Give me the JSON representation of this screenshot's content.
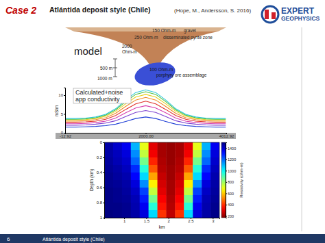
{
  "header": {
    "case": "Case 2",
    "title": "Atlántida deposit style (Chile)",
    "citation": "(Hope, M., Andersson, S. 2016)"
  },
  "logo": {
    "line1": "EXPERT",
    "line2": "GEOPHYSICS"
  },
  "model": {
    "title": "model",
    "layers": [
      {
        "resistivity": "150 Ohm-m",
        "label": "gravel"
      },
      {
        "resistivity": "250 Ohm-m",
        "label": "disseminated pyrite zone"
      },
      {
        "resistivity": "100 Ohm-m",
        "label": "porphyry ore assemblage"
      }
    ],
    "host": [
      "2000",
      "Ohm-m"
    ],
    "scale": [
      "500 m",
      "1000 m"
    ]
  },
  "chart_data": [
    {
      "type": "line",
      "annotation": [
        "Calculated+noise",
        "app conductivity"
      ],
      "ylabel": "mS/m",
      "x": [
        0,
        250,
        500,
        750,
        1000,
        1250,
        1500,
        1750,
        2000,
        2250,
        2500,
        2750,
        3000,
        3250,
        3500,
        3750,
        4000
      ],
      "xlim": [
        -12.92,
        4012.92
      ],
      "xticks": [
        -12.92,
        {
          "value": 2000,
          "label": "2000.00"
        },
        4012.92
      ],
      "ylim": [
        0,
        12
      ],
      "yticks": [
        0,
        5,
        10
      ],
      "series": [
        {
          "color": "#1f3fd6",
          "values": [
            1.5,
            1.5,
            1.6,
            1.7,
            1.9,
            2.3,
            3.0,
            3.8,
            4.2,
            3.8,
            3.0,
            2.3,
            1.9,
            1.7,
            1.6,
            1.5,
            1.5
          ]
        },
        {
          "color": "#7b3fd0",
          "values": [
            2.0,
            2.0,
            2.1,
            2.3,
            2.6,
            3.2,
            4.3,
            5.4,
            5.9,
            5.4,
            4.3,
            3.2,
            2.6,
            2.3,
            2.1,
            2.0,
            2.0
          ]
        },
        {
          "color": "#d63fb0",
          "values": [
            2.4,
            2.4,
            2.5,
            2.7,
            3.1,
            3.9,
            5.3,
            6.6,
            7.2,
            6.6,
            5.3,
            3.9,
            3.1,
            2.7,
            2.5,
            2.4,
            2.4
          ]
        },
        {
          "color": "#e0302a",
          "values": [
            2.8,
            2.8,
            2.9,
            3.1,
            3.6,
            4.6,
            6.2,
            7.7,
            8.4,
            7.7,
            6.2,
            4.6,
            3.6,
            3.1,
            2.9,
            2.8,
            2.8
          ]
        },
        {
          "color": "#f08a24",
          "values": [
            3.1,
            3.1,
            3.2,
            3.5,
            4.0,
            5.2,
            7.0,
            8.7,
            9.4,
            8.7,
            7.0,
            5.2,
            4.0,
            3.5,
            3.2,
            3.1,
            3.1
          ]
        },
        {
          "color": "#e8d020",
          "values": [
            3.4,
            3.4,
            3.5,
            3.8,
            4.4,
            5.7,
            7.7,
            9.5,
            10.2,
            9.5,
            7.7,
            5.7,
            4.4,
            3.8,
            3.5,
            3.4,
            3.4
          ]
        },
        {
          "color": "#4cc040",
          "values": [
            3.6,
            3.6,
            3.7,
            4.0,
            4.7,
            6.1,
            8.3,
            10.2,
            10.9,
            10.2,
            8.3,
            6.1,
            4.7,
            4.0,
            3.7,
            3.6,
            3.6
          ]
        },
        {
          "color": "#30c8d8",
          "values": [
            3.8,
            3.8,
            3.9,
            4.2,
            4.9,
            6.4,
            8.7,
            10.7,
            11.4,
            10.7,
            8.7,
            6.4,
            4.9,
            4.2,
            3.9,
            3.8,
            3.8
          ]
        }
      ]
    },
    {
      "type": "heatmap",
      "xlabel": "km",
      "ylabel": "Depth (km)",
      "xlim": [
        0.55,
        3.15
      ],
      "ylim": [
        0,
        1
      ],
      "xticks": [
        1,
        1.5,
        2,
        2.5,
        3
      ],
      "yticks": [
        0,
        0.2,
        0.4,
        0.6,
        0.8,
        1
      ],
      "x": [
        0.65,
        0.85,
        1.05,
        1.25,
        1.45,
        1.65,
        1.85,
        2.05,
        2.25,
        2.45,
        2.65,
        2.85,
        3.05
      ],
      "y": [
        0.05,
        0.15,
        0.25,
        0.35,
        0.45,
        0.55,
        0.65,
        0.75,
        0.85,
        0.95
      ],
      "z": [
        [
          1450,
          1400,
          1350,
          1100,
          700,
          300,
          220,
          200,
          220,
          300,
          700,
          1100,
          1350
        ],
        [
          1450,
          1420,
          1380,
          1150,
          750,
          320,
          220,
          200,
          220,
          320,
          750,
          1150,
          1380
        ],
        [
          1460,
          1430,
          1400,
          1200,
          850,
          380,
          230,
          200,
          230,
          380,
          850,
          1200,
          1400
        ],
        [
          1470,
          1450,
          1420,
          1280,
          950,
          450,
          240,
          210,
          240,
          450,
          950,
          1280,
          1420
        ],
        [
          1480,
          1460,
          1440,
          1330,
          1050,
          550,
          260,
          210,
          260,
          550,
          1050,
          1330,
          1440
        ],
        [
          1480,
          1470,
          1450,
          1380,
          1150,
          650,
          280,
          220,
          280,
          650,
          1150,
          1380,
          1450
        ],
        [
          1490,
          1480,
          1460,
          1410,
          1250,
          750,
          300,
          220,
          300,
          750,
          1250,
          1410,
          1460
        ],
        [
          1490,
          1480,
          1470,
          1430,
          1300,
          850,
          330,
          230,
          330,
          850,
          1300,
          1430,
          1470
        ],
        [
          1490,
          1490,
          1480,
          1440,
          1350,
          950,
          360,
          240,
          360,
          950,
          1350,
          1440,
          1480
        ],
        [
          1500,
          1490,
          1480,
          1450,
          1380,
          1050,
          400,
          250,
          400,
          1050,
          1380,
          1450,
          1490
        ]
      ],
      "colorbar_range": [
        170,
        1500
      ],
      "colorbar_ticks": [
        200,
        400,
        600,
        800,
        1000,
        1200,
        1400
      ],
      "colorbar_label": "Resistivity (ohm-m)"
    }
  ],
  "footer": {
    "page": 6,
    "text": "Atlántida deposit style (Chile)"
  }
}
